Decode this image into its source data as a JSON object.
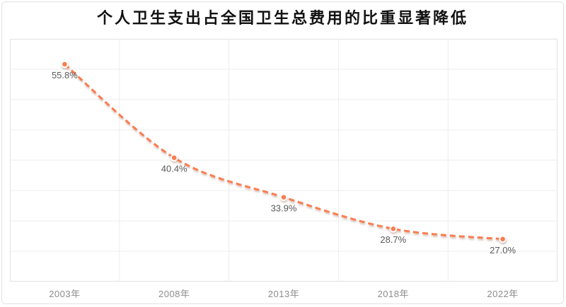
{
  "chart_data": {
    "type": "line",
    "title": "个人卫生支出占全国卫生总费用的比重显著降低",
    "categories": [
      "2003年",
      "2008年",
      "2013年",
      "2018年",
      "2022年"
    ],
    "values": [
      55.8,
      40.4,
      33.9,
      28.7,
      27.0
    ],
    "labels": [
      "55.8%",
      "40.4%",
      "33.9%",
      "28.7%",
      "27.0%"
    ],
    "xlabel": "",
    "ylabel": "",
    "ylim": [
      20,
      60
    ],
    "y_grid_step": 5,
    "grid": true,
    "legend_position": "none",
    "line_style": "dashed",
    "smooth": true,
    "colors": {
      "line": "#F97D51",
      "marker_fill": "#F97D51",
      "marker_border": "#FFFFFF",
      "grid_line": "#EDEDED",
      "plot_border": "#E2E2E2",
      "axis_label": "#8C8C8C",
      "data_label": "#595959",
      "title": "#111111",
      "card_border": "#E1E1E1",
      "background": "#FFFFFF"
    }
  }
}
